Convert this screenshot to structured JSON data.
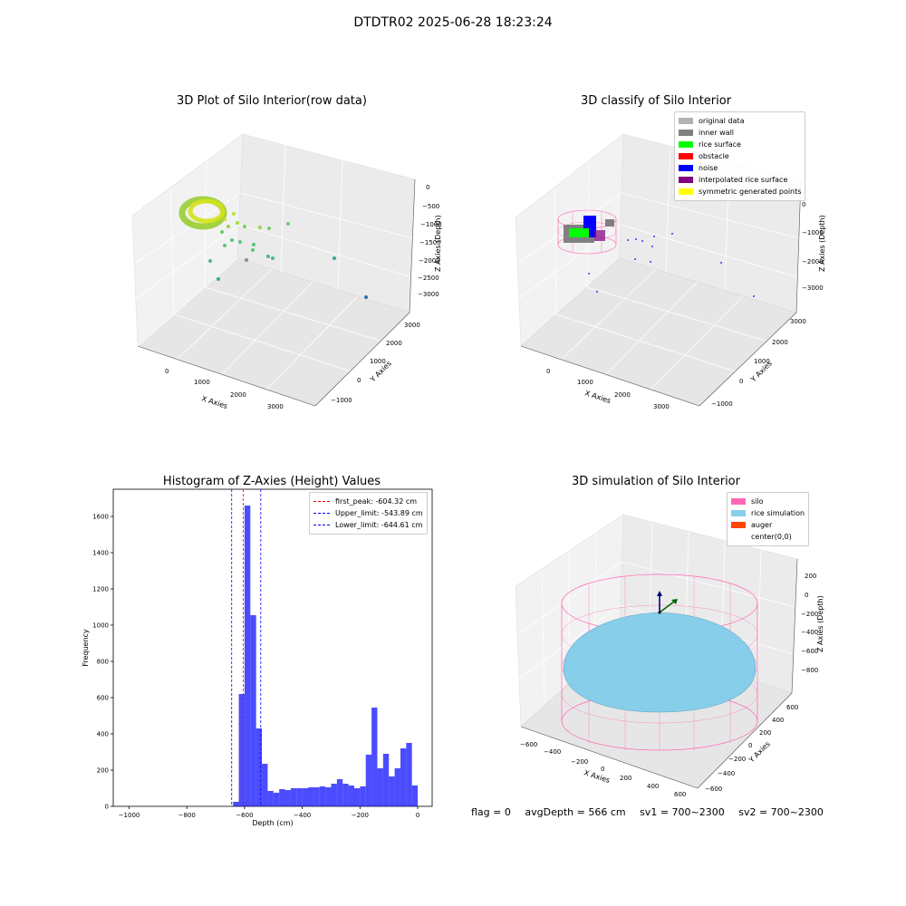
{
  "suptitle": "DTDTR02 2025-06-28 18:23:24",
  "panels": {
    "raw": {
      "title": "3D Plot of Silo Interior(row data)",
      "xlabel": "X Axies",
      "ylabel": "Y Axies",
      "zlabel": "Z Axies (Depth)",
      "xticks": [
        "0",
        "1000",
        "2000",
        "3000"
      ],
      "yticks": [
        "3000",
        "2000",
        "1000",
        "0",
        "−1000"
      ],
      "zticks": [
        "0",
        "−500",
        "−1000",
        "−1500",
        "−2000",
        "−2500",
        "−3000"
      ]
    },
    "classify": {
      "title": "3D classify of Silo Interior",
      "xlabel": "X Axies",
      "ylabel": "Y Axies",
      "zlabel": "Z Axies (Depth)",
      "xticks": [
        "0",
        "1000",
        "2000",
        "3000"
      ],
      "yticks": [
        "3000",
        "2000",
        "1000",
        "0",
        "−1000"
      ],
      "zticks": [
        "0",
        "−1000",
        "−2000",
        "−3000"
      ],
      "legend": [
        {
          "label": "original data",
          "color": "#b3b3b3"
        },
        {
          "label": "inner wall",
          "color": "#808080"
        },
        {
          "label": "rice surface",
          "color": "#00ff00"
        },
        {
          "label": "obstacle",
          "color": "#ff0000"
        },
        {
          "label": "noise",
          "color": "#0000ff"
        },
        {
          "label": "interpolated rice surface",
          "color": "#800080"
        },
        {
          "label": "symmetric generated points",
          "color": "#ffff00"
        }
      ]
    },
    "simulation": {
      "title": "3D simulation of Silo Interior",
      "xlabel": "X Axies",
      "ylabel": "Y Axies",
      "zlabel": "Z Axies (Depth)",
      "xticks": [
        "−600",
        "−400",
        "−200",
        "0",
        "200",
        "400",
        "600"
      ],
      "yticks": [
        "600",
        "400",
        "200",
        "0",
        "−200",
        "−400",
        "−600"
      ],
      "zticks": [
        "200",
        "0",
        "−200",
        "−400",
        "−600",
        "−800"
      ],
      "legend": [
        {
          "label": "silo",
          "color": "#ff69b4"
        },
        {
          "label": "rice simulation",
          "color": "#87ceeb"
        },
        {
          "label": "auger",
          "color": "#ff4500"
        },
        {
          "label": "center(0,0)",
          "color": "#ffffff"
        }
      ]
    }
  },
  "chart_data": [
    {
      "type": "bar",
      "title": "Histogram of Z-Axies (Height) Values",
      "xlabel": "Depth (cm)",
      "ylabel": "Frequency",
      "xlim": [
        -1055,
        50
      ],
      "ylim": [
        0,
        1750
      ],
      "xticks": [
        -1000,
        -800,
        -600,
        -400,
        -200,
        0
      ],
      "yticks": [
        0,
        200,
        400,
        600,
        800,
        1000,
        1200,
        1400,
        1600
      ],
      "bin_width": 20,
      "bins": [
        {
          "x": -640,
          "value": 25
        },
        {
          "x": -620,
          "value": 620
        },
        {
          "x": -600,
          "value": 1660
        },
        {
          "x": -580,
          "value": 1055
        },
        {
          "x": -560,
          "value": 430
        },
        {
          "x": -540,
          "value": 235
        },
        {
          "x": -520,
          "value": 85
        },
        {
          "x": -500,
          "value": 75
        },
        {
          "x": -480,
          "value": 95
        },
        {
          "x": -460,
          "value": 90
        },
        {
          "x": -440,
          "value": 100
        },
        {
          "x": -420,
          "value": 100
        },
        {
          "x": -400,
          "value": 100
        },
        {
          "x": -380,
          "value": 105
        },
        {
          "x": -360,
          "value": 105
        },
        {
          "x": -340,
          "value": 110
        },
        {
          "x": -320,
          "value": 105
        },
        {
          "x": -300,
          "value": 125
        },
        {
          "x": -280,
          "value": 150
        },
        {
          "x": -260,
          "value": 125
        },
        {
          "x": -240,
          "value": 115
        },
        {
          "x": -220,
          "value": 100
        },
        {
          "x": -200,
          "value": 110
        },
        {
          "x": -180,
          "value": 285
        },
        {
          "x": -160,
          "value": 545
        },
        {
          "x": -140,
          "value": 210
        },
        {
          "x": -120,
          "value": 290
        },
        {
          "x": -100,
          "value": 165
        },
        {
          "x": -80,
          "value": 210
        },
        {
          "x": -60,
          "value": 320
        },
        {
          "x": -40,
          "value": 350
        },
        {
          "x": -20,
          "value": 115
        }
      ],
      "bar_color": "#0000ff",
      "lines": [
        {
          "label": "first_peak: -604.32 cm",
          "x": -604.32,
          "color": "#ff0000"
        },
        {
          "label": "Upper_limit: -543.89 cm",
          "x": -543.89,
          "color": "#0000ff"
        },
        {
          "label": "Lower_limit: -644.61 cm",
          "x": -644.61,
          "color": "#0000ff"
        }
      ],
      "legend_position": "top-right"
    }
  ],
  "footer": {
    "flag": "flag = 0",
    "avg": "avgDepth = 566 cm",
    "sv1": "sv1 = 700~2300",
    "sv2": "sv2 = 700~2300"
  }
}
